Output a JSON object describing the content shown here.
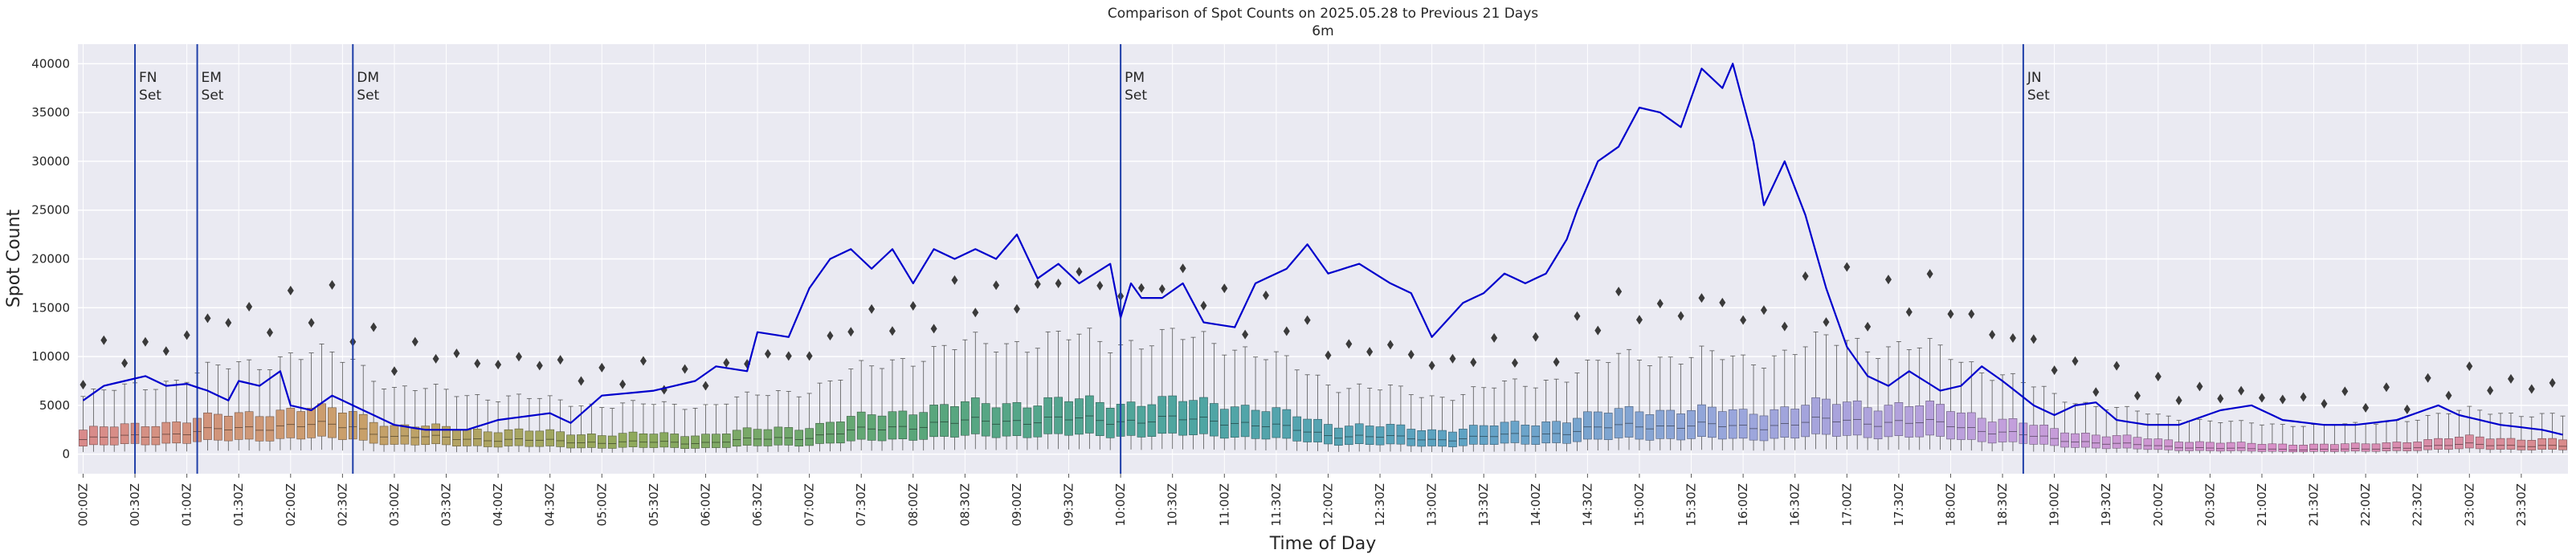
{
  "chart_data": {
    "type": "box+line",
    "title": "Comparison of Spot Counts on 2025.05.28 to Previous 21 Days",
    "subtitle": "6m",
    "xlabel": "Time of Day",
    "ylabel": "Spot Count",
    "ylim": [
      -2000,
      42000
    ],
    "y_ticks": [
      0,
      5000,
      10000,
      15000,
      20000,
      25000,
      30000,
      35000,
      40000
    ],
    "x_tick_labels": [
      "00:00Z",
      "00:30Z",
      "01:00Z",
      "01:30Z",
      "02:00Z",
      "02:30Z",
      "03:00Z",
      "03:30Z",
      "04:00Z",
      "04:30Z",
      "05:00Z",
      "05:30Z",
      "06:00Z",
      "06:30Z",
      "07:00Z",
      "07:30Z",
      "08:00Z",
      "08:30Z",
      "09:00Z",
      "09:30Z",
      "10:00Z",
      "10:30Z",
      "11:00Z",
      "11:30Z",
      "12:00Z",
      "12:30Z",
      "13:00Z",
      "13:30Z",
      "14:00Z",
      "14:30Z",
      "15:00Z",
      "15:30Z",
      "16:00Z",
      "16:30Z",
      "17:00Z",
      "17:30Z",
      "18:00Z",
      "18:30Z",
      "19:00Z",
      "19:30Z",
      "20:00Z",
      "20:30Z",
      "21:00Z",
      "21:30Z",
      "22:00Z",
      "22:30Z",
      "23:00Z",
      "23:30Z"
    ],
    "bin_minutes": 6,
    "bins_per_day": 240,
    "grid": true,
    "line_color": "#0000cc",
    "vline_color": "#1f3fa8",
    "background_color": "#eaeaf2",
    "palette": [
      "#d98b8b",
      "#c9a06a",
      "#8faa5c",
      "#5aa679",
      "#4ea5a1",
      "#5ea3c4",
      "#9aa6dc",
      "#c39fdc",
      "#d98fc7",
      "#d98b8b"
    ],
    "annotations": [
      {
        "time": "00:30Z",
        "label1": "FN",
        "label2": "Set"
      },
      {
        "time": "01:06Z",
        "label1": "EM",
        "label2": "Set"
      },
      {
        "time": "02:36Z",
        "label1": "DM",
        "label2": "Set"
      },
      {
        "time": "10:00Z",
        "label1": "PM",
        "label2": "Set"
      },
      {
        "time": "18:42Z",
        "label1": "JN",
        "label2": "Set"
      }
    ],
    "today_series_keyframes": [
      [
        "00:00Z",
        5500
      ],
      [
        "00:12Z",
        7000
      ],
      [
        "00:24Z",
        7500
      ],
      [
        "00:36Z",
        8000
      ],
      [
        "00:48Z",
        7000
      ],
      [
        "01:00Z",
        7200
      ],
      [
        "01:12Z",
        6500
      ],
      [
        "01:24Z",
        5500
      ],
      [
        "01:30Z",
        7500
      ],
      [
        "01:42Z",
        7000
      ],
      [
        "01:54Z",
        8500
      ],
      [
        "02:00Z",
        5000
      ],
      [
        "02:12Z",
        4500
      ],
      [
        "02:24Z",
        6000
      ],
      [
        "02:36Z",
        5000
      ],
      [
        "02:48Z",
        4000
      ],
      [
        "03:00Z",
        3000
      ],
      [
        "03:18Z",
        2500
      ],
      [
        "03:42Z",
        2500
      ],
      [
        "04:00Z",
        3500
      ],
      [
        "04:30Z",
        4200
      ],
      [
        "04:42Z",
        3200
      ],
      [
        "05:00Z",
        6000
      ],
      [
        "05:30Z",
        6500
      ],
      [
        "05:54Z",
        7500
      ],
      [
        "06:06Z",
        9000
      ],
      [
        "06:24Z",
        8500
      ],
      [
        "06:30Z",
        12500
      ],
      [
        "06:48Z",
        12000
      ],
      [
        "07:00Z",
        17000
      ],
      [
        "07:12Z",
        20000
      ],
      [
        "07:24Z",
        21000
      ],
      [
        "07:36Z",
        19000
      ],
      [
        "07:48Z",
        21000
      ],
      [
        "08:00Z",
        17500
      ],
      [
        "08:12Z",
        21000
      ],
      [
        "08:24Z",
        20000
      ],
      [
        "08:36Z",
        21000
      ],
      [
        "08:48Z",
        20000
      ],
      [
        "09:00Z",
        22500
      ],
      [
        "09:12Z",
        18000
      ],
      [
        "09:24Z",
        19500
      ],
      [
        "09:36Z",
        17500
      ],
      [
        "09:54Z",
        19500
      ],
      [
        "10:00Z",
        14000
      ],
      [
        "10:06Z",
        17500
      ],
      [
        "10:12Z",
        16000
      ],
      [
        "10:24Z",
        16000
      ],
      [
        "10:36Z",
        17500
      ],
      [
        "10:48Z",
        13500
      ],
      [
        "11:06Z",
        13000
      ],
      [
        "11:18Z",
        17500
      ],
      [
        "11:36Z",
        19000
      ],
      [
        "11:48Z",
        21500
      ],
      [
        "12:00Z",
        18500
      ],
      [
        "12:18Z",
        19500
      ],
      [
        "12:36Z",
        17500
      ],
      [
        "12:48Z",
        16500
      ],
      [
        "13:00Z",
        12000
      ],
      [
        "13:18Z",
        15500
      ],
      [
        "13:30Z",
        16500
      ],
      [
        "13:42Z",
        18500
      ],
      [
        "13:54Z",
        17500
      ],
      [
        "14:06Z",
        18500
      ],
      [
        "14:18Z",
        22000
      ],
      [
        "14:24Z",
        25000
      ],
      [
        "14:36Z",
        30000
      ],
      [
        "14:48Z",
        31500
      ],
      [
        "15:00Z",
        35500
      ],
      [
        "15:12Z",
        35000
      ],
      [
        "15:24Z",
        33500
      ],
      [
        "15:36Z",
        39500
      ],
      [
        "15:48Z",
        37500
      ],
      [
        "15:54Z",
        40000
      ],
      [
        "16:06Z",
        32000
      ],
      [
        "16:12Z",
        25500
      ],
      [
        "16:24Z",
        30000
      ],
      [
        "16:36Z",
        24500
      ],
      [
        "16:48Z",
        17000
      ],
      [
        "17:00Z",
        11000
      ],
      [
        "17:12Z",
        8000
      ],
      [
        "17:24Z",
        7000
      ],
      [
        "17:36Z",
        8500
      ],
      [
        "17:54Z",
        6500
      ],
      [
        "18:06Z",
        7000
      ],
      [
        "18:18Z",
        9000
      ],
      [
        "18:30Z",
        7500
      ],
      [
        "18:48Z",
        5000
      ],
      [
        "19:00Z",
        4000
      ],
      [
        "19:12Z",
        5000
      ],
      [
        "19:24Z",
        5300
      ],
      [
        "19:36Z",
        3500
      ],
      [
        "19:54Z",
        3000
      ],
      [
        "20:12Z",
        3000
      ],
      [
        "20:36Z",
        4500
      ],
      [
        "20:54Z",
        5000
      ],
      [
        "21:12Z",
        3500
      ],
      [
        "21:36Z",
        3000
      ],
      [
        "21:54Z",
        3000
      ],
      [
        "22:18Z",
        3500
      ],
      [
        "22:42Z",
        5000
      ],
      [
        "22:54Z",
        4000
      ],
      [
        "23:18Z",
        3000
      ],
      [
        "23:42Z",
        2500
      ],
      [
        "23:54Z",
        2000
      ]
    ],
    "historical_median_keyframes": [
      [
        "00:00Z",
        1500
      ],
      [
        "01:00Z",
        2200
      ],
      [
        "02:00Z",
        3000
      ],
      [
        "02:36Z",
        2800
      ],
      [
        "03:00Z",
        1800
      ],
      [
        "04:00Z",
        1500
      ],
      [
        "05:00Z",
        1200
      ],
      [
        "06:00Z",
        1200
      ],
      [
        "07:00Z",
        1800
      ],
      [
        "08:00Z",
        3000
      ],
      [
        "09:00Z",
        3500
      ],
      [
        "10:00Z",
        3500
      ],
      [
        "11:00Z",
        3500
      ],
      [
        "12:00Z",
        2000
      ],
      [
        "13:00Z",
        1500
      ],
      [
        "14:00Z",
        2000
      ],
      [
        "15:00Z",
        3000
      ],
      [
        "16:00Z",
        2800
      ],
      [
        "17:00Z",
        3500
      ],
      [
        "18:00Z",
        3000
      ],
      [
        "19:00Z",
        1500
      ],
      [
        "20:00Z",
        800
      ],
      [
        "21:00Z",
        500
      ],
      [
        "22:00Z",
        500
      ],
      [
        "23:00Z",
        1000
      ],
      [
        "23:54Z",
        800
      ]
    ]
  }
}
